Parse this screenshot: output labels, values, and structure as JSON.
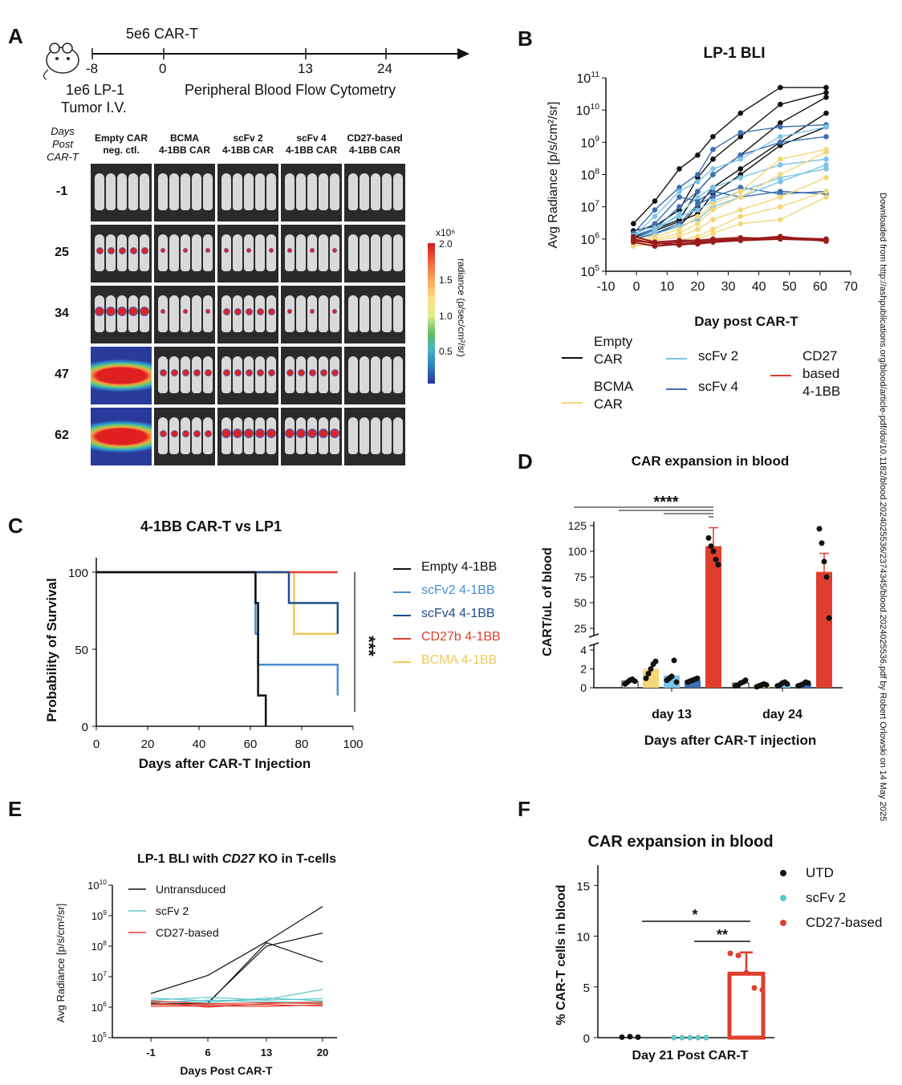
{
  "panels": {
    "a": "A",
    "b": "B",
    "c": "C",
    "d": "D",
    "e": "E",
    "f": "F"
  },
  "timeline": {
    "top_label": "5e6 CAR-T",
    "ticks": [
      "-8",
      "0",
      "13",
      "24"
    ],
    "left_caption_1": "1e6 LP-1",
    "left_caption_2": "Tumor I.V.",
    "right_caption": "Peripheral Blood Flow Cytometry"
  },
  "imaging": {
    "row_header_1": "Days",
    "row_header_2": "Post",
    "row_header_3": "CAR-T",
    "columns": [
      {
        "l1": "Empty CAR",
        "l2": "neg. ctl."
      },
      {
        "l1": "BCMA",
        "l2": "4-1BB CAR"
      },
      {
        "l1": "scFv 2",
        "l2": "4-1BB CAR"
      },
      {
        "l1": "scFv 4",
        "l2": "4-1BB CAR"
      },
      {
        "l1": "CD27-based",
        "l2": "4-1BB CAR"
      }
    ],
    "days": [
      "-1",
      "25",
      "34",
      "47",
      "62"
    ],
    "colorbar": {
      "scale": "x10⁶",
      "ticks": [
        "2.0",
        "1.5",
        "1.0",
        "0.5"
      ],
      "label": "radiance (p/sec/cm²/sr)"
    }
  },
  "side_note": "Downloaded from http://ashpublications.org/blood/article-pdf/doi/10.1182/blood.2024025536/2374345/blood.2024025536.pdf by Robert Orlowski on 14 May 2025",
  "colors": {
    "empty": "#111111",
    "bcma": "#f5d77a",
    "scfv2": "#7cc4e8",
    "scfv4": "#3c6fb3",
    "cd27": "#e03e2d",
    "cd27_dark": "#9b1b1b",
    "utd": "#111111",
    "scfv2_f": "#5ec6c8"
  },
  "chart_data": [
    {
      "id": "B",
      "type": "line",
      "title": "LP-1 BLI",
      "xlabel": "Day post CAR-T",
      "ylabel": "Avg Radiance [p/s/cm²/sr]",
      "xlim": [
        -10,
        70
      ],
      "xticks": [
        "-10",
        "0",
        "10",
        "20",
        "30",
        "40",
        "50",
        "60",
        "70"
      ],
      "ylog": true,
      "ylim": [
        100000,
        100000000000
      ],
      "yticks": [
        {
          "base": "10",
          "exp": "11"
        },
        {
          "base": "10",
          "exp": "10"
        },
        {
          "base": "10",
          "exp": "9"
        },
        {
          "base": "10",
          "exp": "8"
        },
        {
          "base": "10",
          "exp": "7"
        },
        {
          "base": "10",
          "exp": "6"
        },
        {
          "base": "10",
          "exp": "5"
        }
      ],
      "x": [
        -1,
        6,
        14,
        20,
        25,
        34,
        47,
        62
      ],
      "legend": [
        {
          "name": "Empty CAR",
          "color": "#111111"
        },
        {
          "name": "BCMA CAR",
          "color": "#f5d77a"
        },
        {
          "name": "scFv 2",
          "color": "#7cc4e8"
        },
        {
          "name": "scFv 4",
          "color": "#3c6fb3"
        },
        {
          "name": "CD27 based 4-1BB",
          "color": "#e03e2d"
        }
      ],
      "series": [
        {
          "group": "empty",
          "values": [
            3000000,
            15000000,
            150000000,
            400000000,
            1500000000,
            8000000000,
            50000000000,
            50000000000
          ]
        },
        {
          "group": "empty",
          "values": [
            1800000,
            2500000,
            8000000,
            80000000,
            300000000,
            1500000000,
            15000000000,
            35000000000
          ]
        },
        {
          "group": "empty",
          "values": [
            1300000,
            2000000,
            4000000,
            30000000,
            100000000,
            400000000,
            4000000000,
            25000000000
          ]
        },
        {
          "group": "empty",
          "values": [
            900000,
            1500000,
            2500000,
            10000000,
            40000000,
            150000000,
            1000000000,
            8000000000
          ]
        },
        {
          "group": "empty",
          "values": [
            1100000,
            1800000,
            3500000,
            6000000,
            25000000,
            100000000,
            800000000,
            3000000000
          ]
        },
        {
          "group": "scfv4",
          "values": [
            1500000,
            8000000,
            40000000,
            100000000,
            600000000,
            2000000000,
            3000000000,
            3500000000
          ]
        },
        {
          "group": "scfv4",
          "values": [
            1200000,
            2000000,
            10000000,
            30000000,
            100000000,
            400000000,
            1000000000,
            1500000000
          ]
        },
        {
          "group": "scfv4",
          "values": [
            1400000,
            3000000,
            20000000,
            15000000,
            30000000,
            20000000,
            30000000,
            25000000
          ]
        },
        {
          "group": "scfv4",
          "values": [
            1000000,
            1500000,
            3000000,
            12000000,
            20000000,
            40000000,
            25000000,
            30000000
          ]
        },
        {
          "group": "scfv2",
          "values": [
            1200000,
            5000000,
            30000000,
            60000000,
            150000000,
            300000000,
            1500000000,
            3000000000
          ]
        },
        {
          "group": "scfv2",
          "values": [
            1000000,
            1800000,
            6000000,
            20000000,
            40000000,
            80000000,
            200000000,
            300000000
          ]
        },
        {
          "group": "scfv2",
          "values": [
            1300000,
            2200000,
            5000000,
            8000000,
            15000000,
            30000000,
            80000000,
            150000000
          ]
        },
        {
          "group": "scfv2",
          "values": [
            900000,
            1400000,
            2500000,
            4000000,
            10000000,
            20000000,
            60000000,
            200000000
          ]
        },
        {
          "group": "bcma",
          "values": [
            900000,
            1000000,
            1500000,
            3000000,
            8000000,
            20000000,
            100000000,
            500000000
          ]
        },
        {
          "group": "bcma",
          "values": [
            800000,
            900000,
            1200000,
            2000000,
            4000000,
            8000000,
            20000000,
            80000000
          ]
        },
        {
          "group": "bcma",
          "values": [
            700000,
            800000,
            900000,
            1200000,
            2000000,
            5000000,
            10000000,
            30000000
          ]
        },
        {
          "group": "bcma",
          "values": [
            600000,
            700000,
            800000,
            1000000,
            1500000,
            3000000,
            4000000,
            20000000
          ]
        },
        {
          "group": "bcma",
          "values": [
            1000000,
            1200000,
            2000000,
            5000000,
            12000000,
            30000000,
            300000000,
            600000000
          ]
        },
        {
          "group": "cd27",
          "values": [
            1000000,
            700000,
            800000,
            800000,
            900000,
            1000000,
            1100000,
            1000000
          ]
        },
        {
          "group": "cd27",
          "values": [
            800000,
            600000,
            700000,
            700000,
            800000,
            900000,
            1000000,
            900000
          ]
        },
        {
          "group": "cd27",
          "values": [
            1200000,
            800000,
            900000,
            900000,
            1000000,
            1100000,
            1000000,
            950000
          ]
        },
        {
          "group": "cd27",
          "values": [
            900000,
            750000,
            650000,
            750000,
            850000,
            950000,
            1200000,
            850000
          ]
        }
      ]
    },
    {
      "id": "C",
      "type": "line",
      "title": "4-1BB CAR-T vs LP1",
      "xlabel": "Days after CAR-T Injection",
      "ylabel": "Probability of Survival",
      "xlim": [
        0,
        100
      ],
      "ylim": [
        0,
        100
      ],
      "xticks": [
        "0",
        "20",
        "40",
        "60",
        "80",
        "100"
      ],
      "yticks": [
        "0",
        "50",
        "100"
      ],
      "significance": "***",
      "series": [
        {
          "name": "Empty 4-1BB",
          "color": "#111111",
          "steps": [
            [
              0,
              100
            ],
            [
              62,
              100
            ],
            [
              62,
              80
            ],
            [
              63,
              80
            ],
            [
              63,
              20
            ],
            [
              66,
              20
            ],
            [
              66,
              0
            ]
          ]
        },
        {
          "name": "scFv2 4-1BB",
          "color": "#4a8fd0",
          "steps": [
            [
              0,
              100
            ],
            [
              62,
              100
            ],
            [
              62,
              60
            ],
            [
              63,
              60
            ],
            [
              63,
              40
            ],
            [
              94,
              40
            ],
            [
              94,
              20
            ]
          ]
        },
        {
          "name": "scFv4 4-1BB",
          "color": "#1f4e8c",
          "steps": [
            [
              0,
              100
            ],
            [
              75,
              100
            ],
            [
              75,
              80
            ],
            [
              94,
              80
            ],
            [
              94,
              60
            ]
          ]
        },
        {
          "name": "CD27b 4-1BB",
          "color": "#e03e2d",
          "steps": [
            [
              0,
              100
            ],
            [
              94,
              100
            ]
          ]
        },
        {
          "name": "BCMA 4-1BB",
          "color": "#f2c85b",
          "steps": [
            [
              0,
              100
            ],
            [
              75,
              100
            ],
            [
              77,
              100
            ],
            [
              77,
              60
            ],
            [
              94,
              60
            ]
          ]
        }
      ]
    },
    {
      "id": "D",
      "type": "bar",
      "title": "CAR expansion in blood",
      "xlabel": "Days after CAR-T injection",
      "ylabel": "CART/uL of blood",
      "categories": [
        "day 13",
        "day 24"
      ],
      "yticks_upper": [
        "125",
        "100",
        "75",
        "50",
        "25"
      ],
      "yticks_lower": [
        "4",
        "2",
        "0"
      ],
      "significance": "****",
      "groups": [
        {
          "name": "Empty",
          "color": "#111111",
          "values": [
            0.7,
            0.5
          ],
          "points": [
            [
              0.4,
              0.6,
              0.8,
              0.9,
              0.7
            ],
            [
              0.2,
              0.3,
              0.5,
              0.6,
              0.8
            ]
          ]
        },
        {
          "name": "BCMA",
          "color": "#f5d77a",
          "values": [
            2.0,
            0.3
          ],
          "points": [
            [
              1.0,
              1.5,
              2.0,
              2.5,
              2.8
            ],
            [
              0.1,
              0.2,
              0.3,
              0.4,
              0.3
            ]
          ]
        },
        {
          "name": "scFv 2",
          "color": "#7cc4e8",
          "values": [
            1.3,
            0.4
          ],
          "points": [
            [
              0.8,
              1.0,
              1.2,
              2.9,
              0.6
            ],
            [
              0.2,
              0.3,
              0.5,
              0.6,
              0.4
            ]
          ]
        },
        {
          "name": "scFv 4",
          "color": "#3c6fb3",
          "values": [
            0.8,
            0.4
          ],
          "points": [
            [
              0.6,
              0.7,
              0.8,
              0.9,
              1.0
            ],
            [
              0.2,
              0.3,
              0.4,
              0.6,
              0.5
            ]
          ]
        },
        {
          "name": "CD27-based",
          "color": "#e03e2d",
          "values": [
            105,
            80
          ],
          "points": [
            [
              113,
              105,
              100,
              92,
              87
            ],
            [
              122,
              108,
              90,
              75,
              35
            ]
          ]
        }
      ]
    },
    {
      "id": "E",
      "type": "line",
      "title_pre": "LP-1 BLI with ",
      "title_italic": "CD27",
      "title_post": " KO in T-cells",
      "xlabel": "Days Post CAR-T",
      "ylabel": "Avg Radiance [p/s/cm²/sr]",
      "x": [
        -1,
        6,
        13,
        20
      ],
      "xticks": [
        "-1",
        "6",
        "13",
        "20"
      ],
      "ylog": true,
      "ylim": [
        100000,
        10000000000
      ],
      "yticks": [
        {
          "base": "10",
          "exp": "10"
        },
        {
          "base": "10",
          "exp": "9"
        },
        {
          "base": "10",
          "exp": "8"
        },
        {
          "base": "10",
          "exp": "7"
        },
        {
          "base": "10",
          "exp": "6"
        },
        {
          "base": "10",
          "exp": "5"
        }
      ],
      "legend": [
        {
          "name": "Untransduced",
          "color": "#111111"
        },
        {
          "name": "scFv 2",
          "color": "#5ec6c8"
        },
        {
          "name": "CD27-based",
          "color": "#e03e2d"
        }
      ],
      "series": [
        {
          "group": "utd",
          "values": [
            2800000,
            11000000,
            140000000,
            2000000000
          ]
        },
        {
          "group": "utd",
          "values": [
            1500000,
            1400000,
            100000000,
            270000000
          ]
        },
        {
          "group": "utd",
          "values": [
            1300000,
            1300000,
            130000000,
            30000000
          ]
        },
        {
          "group": "scfv2",
          "values": [
            2000000,
            1600000,
            1800000,
            3800000
          ]
        },
        {
          "group": "scfv2",
          "values": [
            1700000,
            2100000,
            1700000,
            1900000
          ]
        },
        {
          "group": "scfv2",
          "values": [
            1500000,
            1400000,
            2000000,
            1600000
          ]
        },
        {
          "group": "scfv2",
          "values": [
            1400000,
            1700000,
            1500000,
            1400000
          ]
        },
        {
          "group": "cd27",
          "values": [
            1600000,
            1300000,
            1400000,
            1300000
          ]
        },
        {
          "group": "cd27",
          "values": [
            1200000,
            1200000,
            1200000,
            1100000
          ]
        },
        {
          "group": "cd27",
          "values": [
            1400000,
            1000000,
            1300000,
            1500000
          ]
        },
        {
          "group": "cd27",
          "values": [
            1050000,
            1100000,
            1050000,
            1200000
          ]
        }
      ]
    },
    {
      "id": "F",
      "type": "bar",
      "title": "CAR expansion in blood",
      "xlabel": "Day 21 Post CAR-T",
      "ylabel": "% CAR-T cells in blood",
      "ylim": [
        0,
        17
      ],
      "yticks": [
        "0",
        "5",
        "10",
        "15"
      ],
      "legend": [
        {
          "name": "UTD",
          "color": "#111111"
        },
        {
          "name": "scFv 2",
          "color": "#5ec6c8"
        },
        {
          "name": "CD27-based",
          "color": "#e03e2d"
        }
      ],
      "significance": [
        "*",
        "**"
      ],
      "groups": [
        {
          "name": "UTD",
          "color": "#111111",
          "value": 0.05,
          "points": [
            0.05,
            0.1,
            0.05
          ]
        },
        {
          "name": "scFv 2",
          "color": "#5ec6c8",
          "value": 0.0,
          "points": [
            0,
            0,
            0,
            0,
            0
          ]
        },
        {
          "name": "CD27-based",
          "color": "#e03e2d",
          "value": 6.3,
          "points": [
            8.3,
            8.1,
            6.4,
            4.9,
            4.7
          ]
        }
      ]
    }
  ]
}
